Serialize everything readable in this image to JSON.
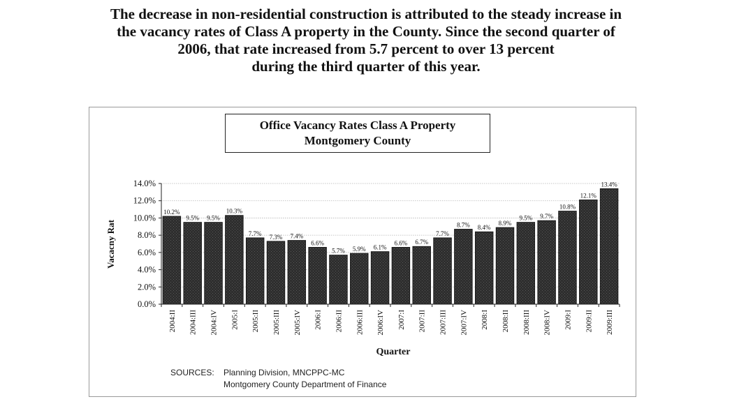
{
  "intro": {
    "lines": [
      "The decrease in non-residential construction is attributed to the steady increase in",
      "the vacancy rates of Class A property in the County.  Since the second quarter of",
      "2006, that rate increased from 5.7 percent to over 13 percent",
      "during the third quarter of this year."
    ]
  },
  "sources": {
    "label": "SOURCES:",
    "line1": "Planning Division, MNCPPC-MC",
    "line2": "Montgomery County Department of Finance"
  },
  "chart_data": {
    "type": "bar",
    "title": "Office Vacancy Rates Class A Property",
    "subtitle": "Montgomery County",
    "xlabel": "Quarter",
    "ylabel": "Vacacny Rat",
    "ylim": [
      0,
      14
    ],
    "yticks": [
      0,
      2,
      4,
      6,
      8,
      10,
      12,
      14
    ],
    "ytick_labels": [
      "0.0%",
      "2.0%",
      "4.0%",
      "6.0%",
      "8.0%",
      "10.0%",
      "12.0%",
      "14.0%"
    ],
    "grid": true,
    "legend": "none",
    "categories": [
      "2004:II",
      "2004:III",
      "2004:IV",
      "2005:I",
      "2005:II",
      "2005:III",
      "2005:IV",
      "2006:I",
      "2006:II",
      "2006:III",
      "2006:IV",
      "2007:I",
      "2007:II",
      "2007:III",
      "2007:IV",
      "2008:I",
      "2008:II",
      "2008:III",
      "2008:IV",
      "2009:I",
      "2009:II",
      "2009:III"
    ],
    "values": [
      10.2,
      9.5,
      9.5,
      10.3,
      7.7,
      7.3,
      7.4,
      6.6,
      5.7,
      5.9,
      6.1,
      6.6,
      6.7,
      7.7,
      8.7,
      8.4,
      8.9,
      9.5,
      9.7,
      10.8,
      12.1,
      13.4
    ],
    "data_labels": [
      "10.2%",
      "9.5%",
      "9.5%",
      "10.3%",
      "7.7%",
      "7.3%",
      "7.4%",
      "6.6%",
      "5.7%",
      "5.9%",
      "6.1%",
      "6.6%",
      "6.7%",
      "7.7%",
      "8.7%",
      "8.4%",
      "8.9%",
      "9.5%",
      "9.7%",
      "10.8%",
      "12.1%",
      "13.4%"
    ],
    "bar_color": "#2b2b2b"
  }
}
